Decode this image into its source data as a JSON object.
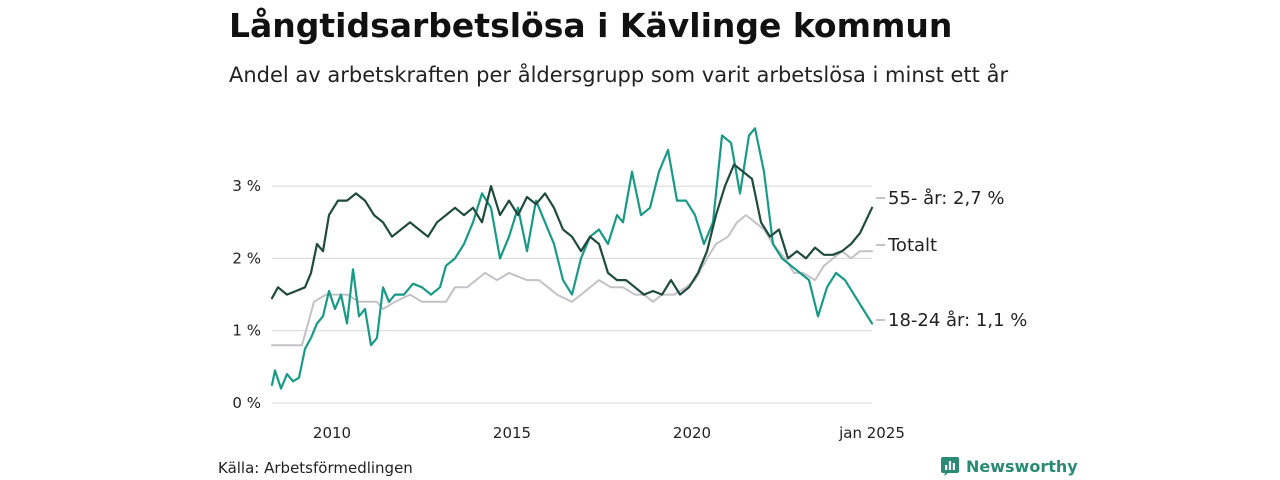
{
  "title": "Långtidsarbetslösa i Kävlinge kommun",
  "subtitle": "Andel av arbetskraften per åldersgrupp som varit arbetslösa i minst ett år",
  "source": "Källa: Arbetsförmedlingen",
  "brand": "Newsworthy",
  "chart_data": {
    "type": "line",
    "x_axis": {
      "start": "2008-05",
      "end": "2025-01",
      "ticks": [
        {
          "date": "2010-01",
          "label": "2010"
        },
        {
          "date": "2015-01",
          "label": "2015"
        },
        {
          "date": "2020-01",
          "label": "2020"
        },
        {
          "date": "2025-01",
          "label": "jan 2025"
        }
      ]
    },
    "y_axis": {
      "min": 0,
      "max": 3.5,
      "ticks": [
        {
          "value": 0,
          "label": "0 %"
        },
        {
          "value": 1,
          "label": "1 %"
        },
        {
          "value": 2,
          "label": "2 %"
        },
        {
          "value": 3,
          "label": "3 %"
        }
      ]
    },
    "grid": true,
    "series": [
      {
        "key": "total",
        "name": "Totalt",
        "end_label": "Totalt",
        "color": "#c2c2c8",
        "points": [
          [
            "2008-05",
            0.8
          ],
          [
            "2009-03",
            0.8
          ],
          [
            "2009-05",
            1.1
          ],
          [
            "2009-07",
            1.4
          ],
          [
            "2009-11",
            1.5
          ],
          [
            "2010-06",
            1.5
          ],
          [
            "2010-10",
            1.4
          ],
          [
            "2011-04",
            1.4
          ],
          [
            "2011-06",
            1.3
          ],
          [
            "2011-10",
            1.4
          ],
          [
            "2012-03",
            1.5
          ],
          [
            "2012-07",
            1.4
          ],
          [
            "2013-03",
            1.4
          ],
          [
            "2013-06",
            1.6
          ],
          [
            "2013-10",
            1.6
          ],
          [
            "2014-01",
            1.7
          ],
          [
            "2014-04",
            1.8
          ],
          [
            "2014-08",
            1.7
          ],
          [
            "2014-12",
            1.8
          ],
          [
            "2015-06",
            1.7
          ],
          [
            "2015-10",
            1.7
          ],
          [
            "2016-01",
            1.6
          ],
          [
            "2016-04",
            1.5
          ],
          [
            "2016-09",
            1.4
          ],
          [
            "2016-12",
            1.5
          ],
          [
            "2017-03",
            1.6
          ],
          [
            "2017-06",
            1.7
          ],
          [
            "2017-10",
            1.6
          ],
          [
            "2018-02",
            1.6
          ],
          [
            "2018-06",
            1.5
          ],
          [
            "2018-09",
            1.5
          ],
          [
            "2018-12",
            1.4
          ],
          [
            "2019-03",
            1.5
          ],
          [
            "2019-07",
            1.5
          ],
          [
            "2019-11",
            1.6
          ],
          [
            "2020-02",
            1.7
          ],
          [
            "2020-06",
            2.0
          ],
          [
            "2020-09",
            2.2
          ],
          [
            "2021-01",
            2.3
          ],
          [
            "2021-04",
            2.5
          ],
          [
            "2021-07",
            2.6
          ],
          [
            "2021-10",
            2.5
          ],
          [
            "2022-01",
            2.4
          ],
          [
            "2022-04",
            2.2
          ],
          [
            "2022-08",
            2.0
          ],
          [
            "2022-11",
            1.8
          ],
          [
            "2023-02",
            1.8
          ],
          [
            "2023-06",
            1.7
          ],
          [
            "2023-09",
            1.9
          ],
          [
            "2023-12",
            2.0
          ],
          [
            "2024-03",
            2.1
          ],
          [
            "2024-06",
            2.0
          ],
          [
            "2024-09",
            2.1
          ],
          [
            "2025-01",
            2.1
          ]
        ]
      },
      {
        "key": "youth",
        "name": "18-24 år",
        "end_label": "18-24 år: 1,1 %",
        "color": "#1a9985",
        "points": [
          [
            "2008-05",
            0.25
          ],
          [
            "2008-06",
            0.45
          ],
          [
            "2008-08",
            0.2
          ],
          [
            "2008-10",
            0.4
          ],
          [
            "2008-12",
            0.3
          ],
          [
            "2009-02",
            0.35
          ],
          [
            "2009-04",
            0.75
          ],
          [
            "2009-06",
            0.9
          ],
          [
            "2009-08",
            1.1
          ],
          [
            "2009-10",
            1.2
          ],
          [
            "2009-12",
            1.55
          ],
          [
            "2010-02",
            1.3
          ],
          [
            "2010-04",
            1.5
          ],
          [
            "2010-06",
            1.1
          ],
          [
            "2010-08",
            1.85
          ],
          [
            "2010-10",
            1.2
          ],
          [
            "2010-12",
            1.3
          ],
          [
            "2011-02",
            0.8
          ],
          [
            "2011-04",
            0.9
          ],
          [
            "2011-06",
            1.6
          ],
          [
            "2011-08",
            1.4
          ],
          [
            "2011-10",
            1.5
          ],
          [
            "2012-01",
            1.5
          ],
          [
            "2012-04",
            1.65
          ],
          [
            "2012-07",
            1.6
          ],
          [
            "2012-10",
            1.5
          ],
          [
            "2013-01",
            1.6
          ],
          [
            "2013-03",
            1.9
          ],
          [
            "2013-06",
            2.0
          ],
          [
            "2013-09",
            2.2
          ],
          [
            "2013-12",
            2.5
          ],
          [
            "2014-03",
            2.9
          ],
          [
            "2014-06",
            2.7
          ],
          [
            "2014-09",
            2.0
          ],
          [
            "2014-12",
            2.3
          ],
          [
            "2015-03",
            2.7
          ],
          [
            "2015-06",
            2.1
          ],
          [
            "2015-09",
            2.8
          ],
          [
            "2015-12",
            2.5
          ],
          [
            "2016-03",
            2.2
          ],
          [
            "2016-06",
            1.7
          ],
          [
            "2016-09",
            1.5
          ],
          [
            "2016-12",
            2.0
          ],
          [
            "2017-03",
            2.3
          ],
          [
            "2017-06",
            2.4
          ],
          [
            "2017-09",
            2.2
          ],
          [
            "2017-12",
            2.6
          ],
          [
            "2018-02",
            2.5
          ],
          [
            "2018-05",
            3.2
          ],
          [
            "2018-08",
            2.6
          ],
          [
            "2018-11",
            2.7
          ],
          [
            "2019-02",
            3.2
          ],
          [
            "2019-05",
            3.5
          ],
          [
            "2019-08",
            2.8
          ],
          [
            "2019-11",
            2.8
          ],
          [
            "2020-02",
            2.6
          ],
          [
            "2020-05",
            2.2
          ],
          [
            "2020-08",
            2.5
          ],
          [
            "2020-11",
            3.7
          ],
          [
            "2021-02",
            3.6
          ],
          [
            "2021-05",
            2.9
          ],
          [
            "2021-08",
            3.7
          ],
          [
            "2021-10",
            3.8
          ],
          [
            "2022-01",
            3.2
          ],
          [
            "2022-04",
            2.2
          ],
          [
            "2022-07",
            2.0
          ],
          [
            "2022-10",
            1.9
          ],
          [
            "2023-01",
            1.8
          ],
          [
            "2023-04",
            1.7
          ],
          [
            "2023-07",
            1.2
          ],
          [
            "2023-10",
            1.6
          ],
          [
            "2024-01",
            1.8
          ],
          [
            "2024-04",
            1.7
          ],
          [
            "2024-07",
            1.5
          ],
          [
            "2024-10",
            1.3
          ],
          [
            "2025-01",
            1.1
          ]
        ]
      },
      {
        "key": "senior",
        "name": "55- år",
        "end_label": "55- år: 2,7 %",
        "color": "#1f4a3c",
        "points": [
          [
            "2008-05",
            1.45
          ],
          [
            "2008-07",
            1.6
          ],
          [
            "2008-10",
            1.5
          ],
          [
            "2009-01",
            1.55
          ],
          [
            "2009-04",
            1.6
          ],
          [
            "2009-06",
            1.8
          ],
          [
            "2009-08",
            2.2
          ],
          [
            "2009-10",
            2.1
          ],
          [
            "2009-12",
            2.6
          ],
          [
            "2010-03",
            2.8
          ],
          [
            "2010-06",
            2.8
          ],
          [
            "2010-09",
            2.9
          ],
          [
            "2010-12",
            2.8
          ],
          [
            "2011-03",
            2.6
          ],
          [
            "2011-06",
            2.5
          ],
          [
            "2011-09",
            2.3
          ],
          [
            "2011-12",
            2.4
          ],
          [
            "2012-03",
            2.5
          ],
          [
            "2012-06",
            2.4
          ],
          [
            "2012-09",
            2.3
          ],
          [
            "2012-12",
            2.5
          ],
          [
            "2013-03",
            2.6
          ],
          [
            "2013-06",
            2.7
          ],
          [
            "2013-09",
            2.6
          ],
          [
            "2013-12",
            2.7
          ],
          [
            "2014-03",
            2.5
          ],
          [
            "2014-06",
            3.0
          ],
          [
            "2014-09",
            2.6
          ],
          [
            "2014-12",
            2.8
          ],
          [
            "2015-03",
            2.6
          ],
          [
            "2015-06",
            2.85
          ],
          [
            "2015-09",
            2.75
          ],
          [
            "2015-12",
            2.9
          ],
          [
            "2016-03",
            2.7
          ],
          [
            "2016-06",
            2.4
          ],
          [
            "2016-09",
            2.3
          ],
          [
            "2016-12",
            2.1
          ],
          [
            "2017-03",
            2.3
          ],
          [
            "2017-06",
            2.2
          ],
          [
            "2017-09",
            1.8
          ],
          [
            "2017-12",
            1.7
          ],
          [
            "2018-03",
            1.7
          ],
          [
            "2018-06",
            1.6
          ],
          [
            "2018-09",
            1.5
          ],
          [
            "2018-12",
            1.55
          ],
          [
            "2019-03",
            1.5
          ],
          [
            "2019-06",
            1.7
          ],
          [
            "2019-09",
            1.5
          ],
          [
            "2019-12",
            1.6
          ],
          [
            "2020-03",
            1.8
          ],
          [
            "2020-06",
            2.1
          ],
          [
            "2020-09",
            2.6
          ],
          [
            "2020-12",
            3.0
          ],
          [
            "2021-03",
            3.3
          ],
          [
            "2021-06",
            3.2
          ],
          [
            "2021-09",
            3.1
          ],
          [
            "2021-12",
            2.5
          ],
          [
            "2022-03",
            2.3
          ],
          [
            "2022-06",
            2.4
          ],
          [
            "2022-09",
            2.0
          ],
          [
            "2022-12",
            2.1
          ],
          [
            "2023-03",
            2.0
          ],
          [
            "2023-06",
            2.15
          ],
          [
            "2023-09",
            2.05
          ],
          [
            "2023-12",
            2.05
          ],
          [
            "2024-03",
            2.1
          ],
          [
            "2024-06",
            2.2
          ],
          [
            "2024-09",
            2.35
          ],
          [
            "2025-01",
            2.7
          ]
        ]
      }
    ]
  }
}
